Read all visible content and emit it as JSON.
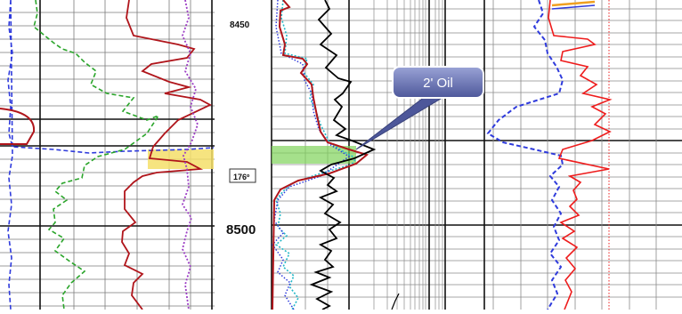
{
  "depth_labels": {
    "top": "8450",
    "middle": "8500"
  },
  "temperature_label": "176º",
  "callout": {
    "text": "2' Oil"
  },
  "colors": {
    "gamma_ray_green": "#2aa52a",
    "resistivity_red": "#b0151b",
    "density_purple": "#9b3cc4",
    "sp_blue": "#2f3bdc",
    "neutron_cyan": "#23b8c8",
    "sonic_black": "#000000",
    "right_track_red": "#ee1c1c",
    "pay_highlight_green": "#7fd35a",
    "pay_highlight_yellow": "#f4df6a",
    "callout_fill": "#6f78b8",
    "grid": "#2a2a2a"
  }
}
